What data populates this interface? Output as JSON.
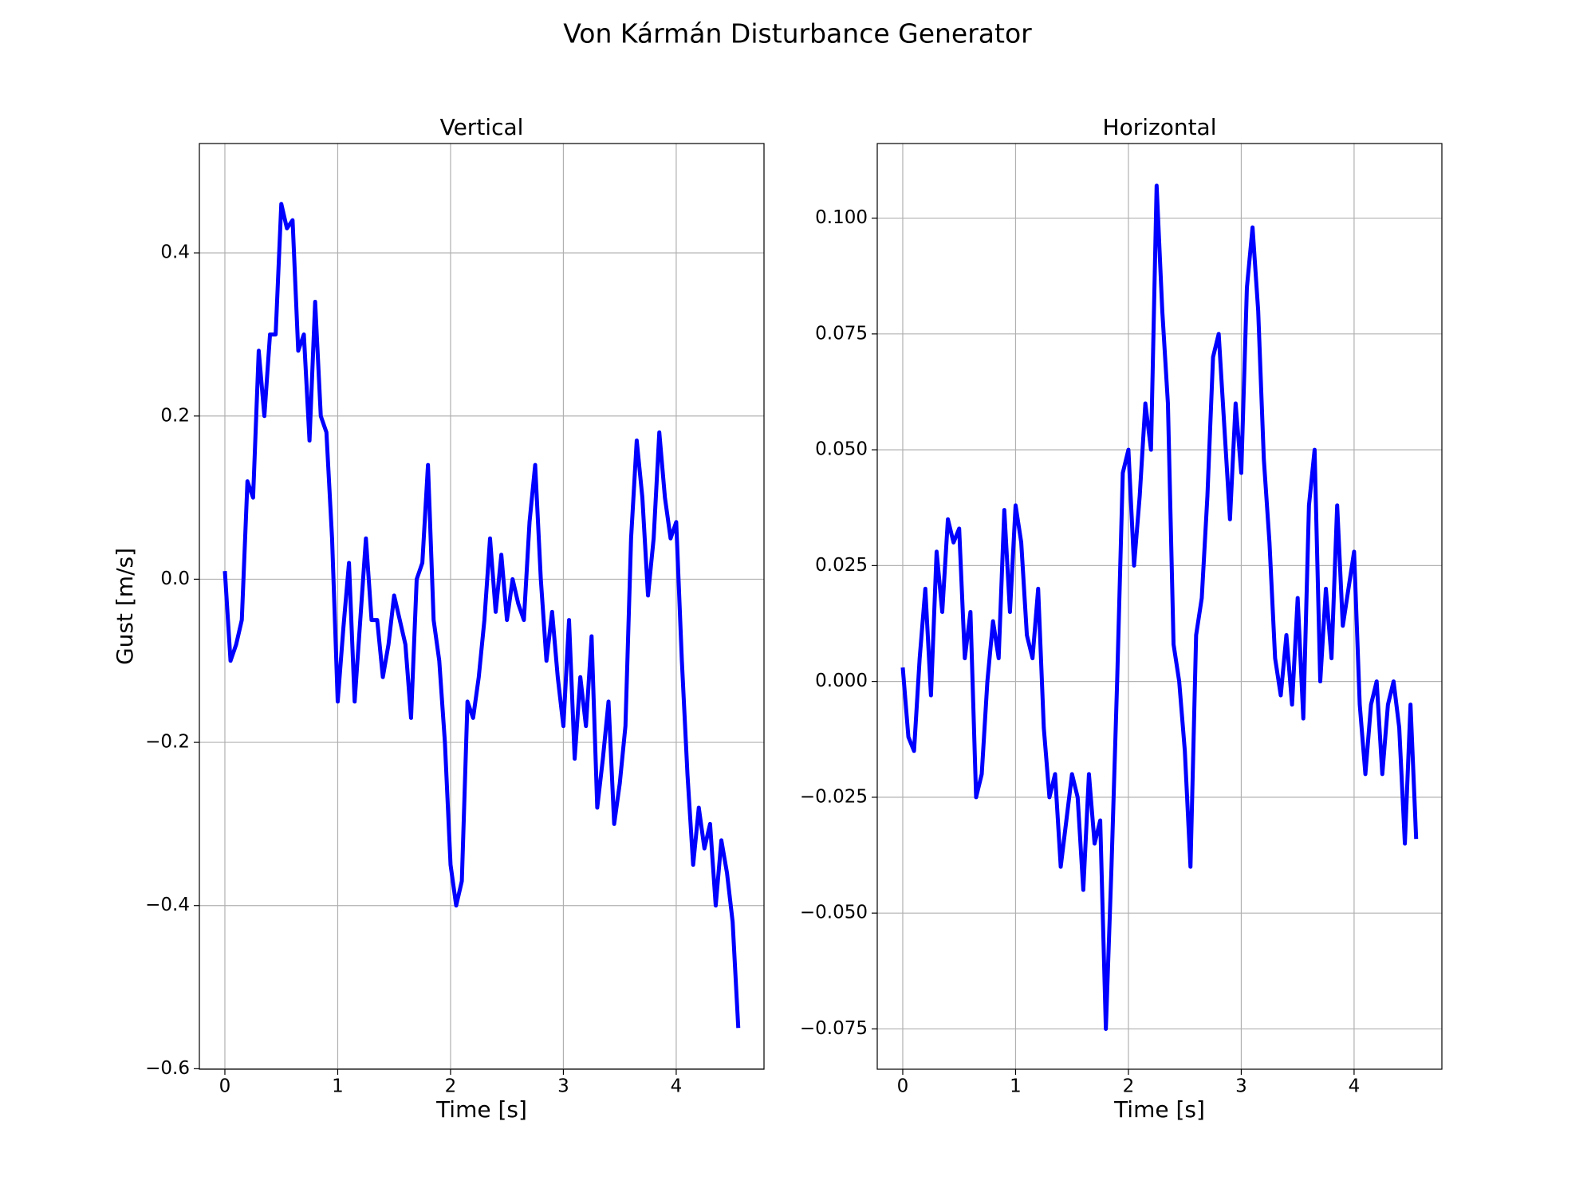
{
  "title": "Von Kármán Disturbance Generator",
  "chart_data": [
    {
      "type": "line",
      "title": "Vertical",
      "xlabel": "Time [s]",
      "ylabel": "Gust [m/s]",
      "color": "blue",
      "grid": true,
      "x": [
        0,
        0.05,
        0.1,
        0.15,
        0.2,
        0.25,
        0.3,
        0.35,
        0.4,
        0.45,
        0.5,
        0.55,
        0.6,
        0.65,
        0.7,
        0.75,
        0.8,
        0.85,
        0.9,
        0.95,
        1.0,
        1.05,
        1.1,
        1.15,
        1.2,
        1.25,
        1.3,
        1.35,
        1.4,
        1.45,
        1.5,
        1.55,
        1.6,
        1.65,
        1.7,
        1.75,
        1.8,
        1.85,
        1.9,
        1.95,
        2.0,
        2.05,
        2.1,
        2.15,
        2.2,
        2.25,
        2.3,
        2.35,
        2.4,
        2.45,
        2.5,
        2.55,
        2.6,
        2.65,
        2.7,
        2.75,
        2.8,
        2.85,
        2.9,
        2.95,
        3.0,
        3.05,
        3.1,
        3.15,
        3.2,
        3.25,
        3.3,
        3.35,
        3.4,
        3.45,
        3.5,
        3.55,
        3.6,
        3.65,
        3.7,
        3.75,
        3.8,
        3.85,
        3.9,
        3.95,
        4.0,
        4.05,
        4.1,
        4.15,
        4.2,
        4.25,
        4.3,
        4.35,
        4.4,
        4.45,
        4.5,
        4.55
      ],
      "values": [
        0.01,
        -0.1,
        -0.08,
        -0.05,
        0.12,
        0.1,
        0.28,
        0.2,
        0.3,
        0.3,
        0.46,
        0.43,
        0.44,
        0.28,
        0.3,
        0.17,
        0.34,
        0.2,
        0.18,
        0.05,
        -0.15,
        -0.06,
        0.02,
        -0.15,
        -0.05,
        0.05,
        -0.05,
        -0.05,
        -0.12,
        -0.08,
        -0.02,
        -0.05,
        -0.08,
        -0.17,
        0.0,
        0.02,
        0.14,
        -0.05,
        -0.1,
        -0.2,
        -0.35,
        -0.4,
        -0.37,
        -0.15,
        -0.17,
        -0.12,
        -0.05,
        0.05,
        -0.04,
        0.03,
        -0.05,
        0.0,
        -0.03,
        -0.05,
        0.07,
        0.14,
        0.0,
        -0.1,
        -0.04,
        -0.12,
        -0.18,
        -0.05,
        -0.22,
        -0.12,
        -0.18,
        -0.07,
        -0.28,
        -0.22,
        -0.15,
        -0.3,
        -0.25,
        -0.18,
        0.05,
        0.17,
        0.1,
        -0.02,
        0.05,
        0.18,
        0.1,
        0.05,
        0.07,
        -0.1,
        -0.24,
        -0.35,
        -0.28,
        -0.33,
        -0.3,
        -0.4,
        -0.32,
        -0.36,
        -0.42,
        -0.55
      ],
      "xlim": [
        -0.226,
        4.778
      ],
      "ylim": [
        -0.6006,
        0.534
      ],
      "xticks": [
        0,
        1,
        2,
        3,
        4
      ],
      "yticks": [
        {
          "value": -0.6,
          "label": "−0.6"
        },
        {
          "value": -0.4,
          "label": "−0.4"
        },
        {
          "value": -0.2,
          "label": "−0.2"
        },
        {
          "value": 0,
          "label": "0.0"
        },
        0.2,
        0.4
      ]
    },
    {
      "type": "line",
      "title": "Horizontal",
      "xlabel": "Time [s]",
      "color": "blue",
      "grid": true,
      "x": [
        0,
        0.05,
        0.1,
        0.15,
        0.2,
        0.25,
        0.3,
        0.35,
        0.4,
        0.45,
        0.5,
        0.55,
        0.6,
        0.65,
        0.7,
        0.75,
        0.8,
        0.85,
        0.9,
        0.95,
        1.0,
        1.05,
        1.1,
        1.15,
        1.2,
        1.25,
        1.3,
        1.35,
        1.4,
        1.45,
        1.5,
        1.55,
        1.6,
        1.65,
        1.7,
        1.75,
        1.8,
        1.85,
        1.9,
        1.95,
        2.0,
        2.05,
        2.1,
        2.15,
        2.2,
        2.25,
        2.3,
        2.35,
        2.4,
        2.45,
        2.5,
        2.55,
        2.6,
        2.65,
        2.7,
        2.75,
        2.8,
        2.85,
        2.9,
        2.95,
        3.0,
        3.05,
        3.1,
        3.15,
        3.2,
        3.25,
        3.3,
        3.35,
        3.4,
        3.45,
        3.5,
        3.55,
        3.6,
        3.65,
        3.7,
        3.75,
        3.8,
        3.85,
        3.9,
        3.95,
        4.0,
        4.05,
        4.1,
        4.15,
        4.2,
        4.25,
        4.3,
        4.35,
        4.4,
        4.45,
        4.5,
        4.55
      ],
      "values": [
        0.003,
        -0.012,
        -0.015,
        0.005,
        0.02,
        -0.003,
        0.028,
        0.015,
        0.035,
        0.03,
        0.033,
        0.005,
        0.015,
        -0.025,
        -0.02,
        0.0,
        0.013,
        0.005,
        0.037,
        0.015,
        0.038,
        0.03,
        0.01,
        0.005,
        0.02,
        -0.01,
        -0.025,
        -0.02,
        -0.04,
        -0.03,
        -0.02,
        -0.025,
        -0.045,
        -0.02,
        -0.035,
        -0.03,
        -0.075,
        -0.04,
        0.0,
        0.045,
        0.05,
        0.025,
        0.04,
        0.06,
        0.05,
        0.107,
        0.08,
        0.06,
        0.008,
        0.0,
        -0.015,
        -0.04,
        0.01,
        0.018,
        0.04,
        0.07,
        0.075,
        0.055,
        0.035,
        0.06,
        0.045,
        0.085,
        0.098,
        0.08,
        0.048,
        0.03,
        0.005,
        -0.003,
        0.01,
        -0.005,
        0.018,
        -0.008,
        0.038,
        0.05,
        0.0,
        0.02,
        0.005,
        0.038,
        0.012,
        0.02,
        0.028,
        -0.005,
        -0.02,
        -0.005,
        0.0,
        -0.02,
        -0.005,
        0.0,
        -0.01,
        -0.035,
        -0.005,
        -0.034
      ],
      "xlim": [
        -0.226,
        4.778
      ],
      "ylim": [
        -0.0837,
        0.1161
      ],
      "xticks": [
        0,
        1,
        2,
        3,
        4
      ],
      "yticks": [
        {
          "value": -0.075,
          "label": "−0.075"
        },
        {
          "value": -0.05,
          "label": "−0.050"
        },
        {
          "value": -0.025,
          "label": "−0.025"
        },
        {
          "value": 0,
          "label": "0.000"
        },
        0.025,
        {
          "value": 0.05,
          "label": "0.050"
        },
        0.075,
        {
          "value": 0.1,
          "label": "0.100"
        }
      ]
    }
  ]
}
